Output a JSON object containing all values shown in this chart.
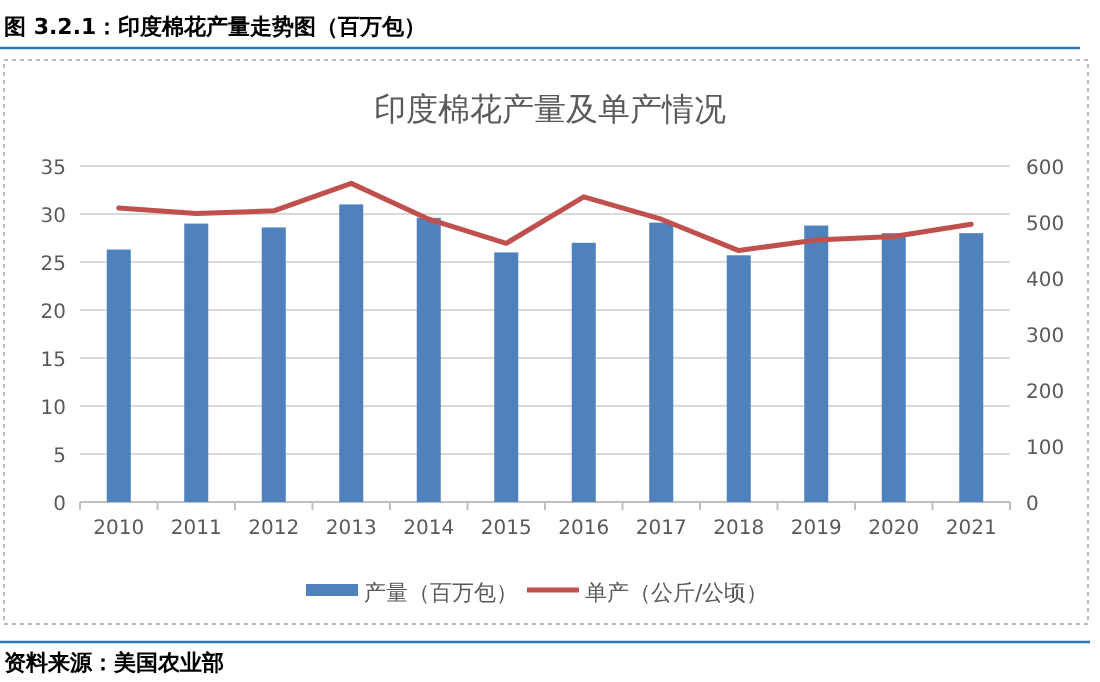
{
  "chart_data": {
    "type": "bar",
    "title": "印度棉花产量及单产情况",
    "categories": [
      "2010",
      "2011",
      "2012",
      "2013",
      "2014",
      "2015",
      "2016",
      "2017",
      "2018",
      "2019",
      "2020",
      "2021"
    ],
    "series": [
      {
        "name": "产量（百万包）",
        "color": "#4f81bd",
        "values": [
          26.3,
          29.0,
          28.6,
          31.0,
          29.6,
          26.0,
          27.0,
          29.1,
          25.7,
          28.8,
          28.0,
          28.0
        ]
      },
      {
        "name": "单产（公斤/公顷）",
        "type": "line",
        "axis": "y2",
        "color": "#c0504d",
        "values": [
          525,
          515,
          520,
          569,
          505,
          462,
          545,
          505,
          449,
          468,
          474,
          496
        ]
      }
    ],
    "ylim": [
      0,
      35
    ],
    "yticks": [
      0,
      5,
      10,
      15,
      20,
      25,
      30,
      35
    ],
    "y2lim": [
      0,
      600
    ],
    "y2ticks": [
      0,
      100,
      200,
      300,
      400,
      500,
      600
    ],
    "grid": "y",
    "legend": "bottom",
    "annotations": [
      "图 3.2.1：印度棉花产量走势图（百万包）",
      "资料来源：美国农业部"
    ]
  }
}
